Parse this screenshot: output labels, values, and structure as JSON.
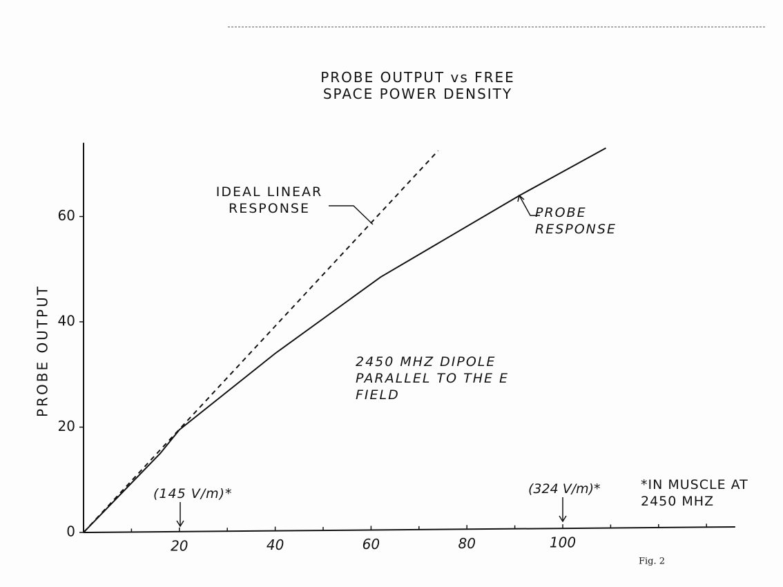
{
  "chart_data": {
    "type": "line",
    "title": "PROBE OUTPUT vs FREE SPACE POWER DENSITY",
    "y_label": "PROBE OUTPUT",
    "xlim": [
      0,
      136
    ],
    "ylim": [
      0,
      74
    ],
    "xticks": [
      20,
      40,
      60,
      80,
      100
    ],
    "xminorticks": [
      10,
      30,
      50,
      70,
      90,
      110,
      120,
      130
    ],
    "yticks": [
      0,
      20,
      40,
      60
    ],
    "series": [
      {
        "name": "IDEAL LINEAR RESPONSE",
        "color": "#111111",
        "dashed": true,
        "x": [
          0,
          74
        ],
        "values": [
          0,
          72.5
        ]
      },
      {
        "name": "PROBE RESPONSE",
        "color": "#111111",
        "dashed": false,
        "x": [
          0,
          16,
          20,
          40,
          62,
          91,
          109
        ],
        "values": [
          0,
          15,
          19.5,
          34,
          48.5,
          64,
          73
        ]
      }
    ],
    "annotations": [
      "(145 V/m)*",
      "(324 V/m)*",
      "*IN MUSCLE AT 2450 MHZ",
      "2450 MHZ DIPOLE PARALLEL TO THE E FIELD",
      "Fig. 2"
    ]
  }
}
